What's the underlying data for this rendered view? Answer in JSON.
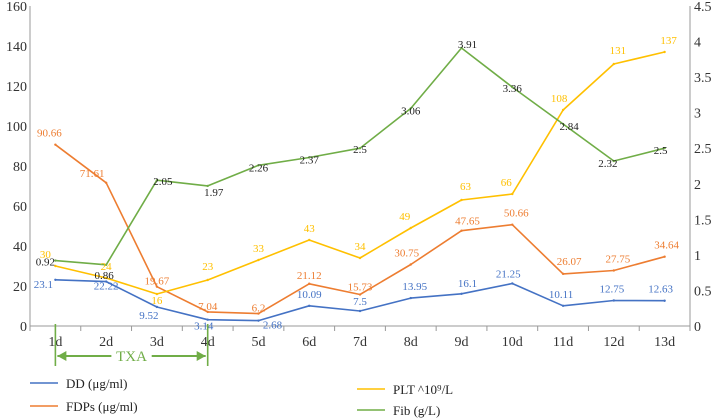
{
  "chart_data": {
    "type": "line",
    "categories": [
      "1d",
      "2d",
      "3d",
      "4d",
      "5d",
      "6d",
      "7d",
      "8d",
      "9d",
      "10d",
      "11d",
      "12d",
      "13d"
    ],
    "left_axis": {
      "min": 0,
      "max": 160,
      "ticks": [
        "0",
        "20",
        "40",
        "60",
        "80",
        "100",
        "120",
        "140",
        "160"
      ]
    },
    "right_axis": {
      "min": 0,
      "max": 4.5,
      "ticks": [
        "0",
        "0.5",
        "1",
        "1.5",
        "2",
        "2.5",
        "3",
        "3.5",
        "4",
        "4.5"
      ]
    },
    "series": [
      {
        "key": "dd",
        "name": "DD (μg/ml)",
        "axis": "left",
        "color": "#4472C4",
        "values": [
          23.1,
          22.22,
          9.52,
          3.14,
          2.68,
          10.09,
          7.5,
          13.95,
          16.1,
          21.25,
          10.11,
          12.75,
          12.63
        ],
        "labels": [
          "23.1",
          "22.22",
          "9.52",
          "3.14",
          "2.68",
          "10.09",
          "7.5",
          "13.95",
          "16.1",
          "21.25",
          "10.11",
          "12.75",
          "12.63"
        ]
      },
      {
        "key": "fdps",
        "name": "FDPs (μg/ml)",
        "axis": "left",
        "color": "#ED7D31",
        "values": [
          90.66,
          71.61,
          19.67,
          7.04,
          6.2,
          21.12,
          15.73,
          30.75,
          47.65,
          50.66,
          26.07,
          27.75,
          34.64
        ],
        "labels": [
          "90.66",
          "71.61",
          "19.67",
          "7.04",
          "6.2",
          "21.12",
          "15.73",
          "30.75",
          "47.65",
          "50.66",
          "26.07",
          "27.75",
          "34.64"
        ]
      },
      {
        "key": "plt",
        "name": "PLT ^10⁹/L",
        "axis": "left",
        "color": "#FFC000",
        "values": [
          30,
          24,
          16,
          23,
          33,
          43,
          34,
          49,
          63,
          66,
          108,
          131,
          137
        ],
        "labels": [
          "30",
          "24",
          "16",
          "23",
          "33",
          "43",
          "34",
          "49",
          "63",
          "66",
          "108",
          "131",
          "137"
        ]
      },
      {
        "key": "fib",
        "name": "Fib (g/L)",
        "axis": "right",
        "color": "#70AD47",
        "values": [
          0.92,
          0.86,
          2.05,
          1.97,
          2.26,
          2.37,
          2.5,
          3.06,
          3.91,
          3.36,
          2.84,
          2.32,
          2.5
        ],
        "labels": [
          "0.92",
          "0.86",
          "2.05",
          "1.97",
          "2.26",
          "2.37",
          "2.5",
          "3.06",
          "3.91",
          "3.36",
          "2.84",
          "2.32",
          "2.5"
        ]
      }
    ],
    "annotation": {
      "text": "TXA",
      "from": "1d",
      "to": "4d",
      "color": "#70AD47"
    }
  },
  "legend": {
    "dd": "DD (μg/ml)",
    "fdps": "FDPs (μg/ml)",
    "plt": "PLT ^10⁹/L",
    "fib": "Fib (g/L)"
  }
}
